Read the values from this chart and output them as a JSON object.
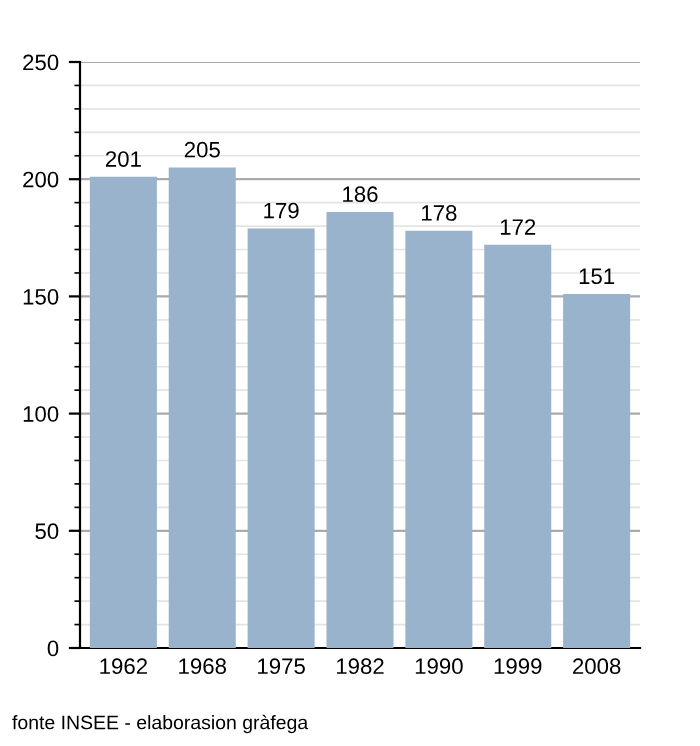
{
  "chart_data": {
    "type": "bar",
    "categories": [
      "1962",
      "1968",
      "1975",
      "1982",
      "1990",
      "1999",
      "2008"
    ],
    "values": [
      201,
      205,
      179,
      186,
      178,
      172,
      151
    ],
    "color": "#9ab3cc",
    "ylim": [
      0,
      250
    ],
    "yticks": [
      0,
      50,
      100,
      150,
      200,
      250
    ],
    "grid": "y",
    "data_labels": true,
    "annotations": [
      "fonte INSEE - elaborasion gràfega"
    ]
  }
}
